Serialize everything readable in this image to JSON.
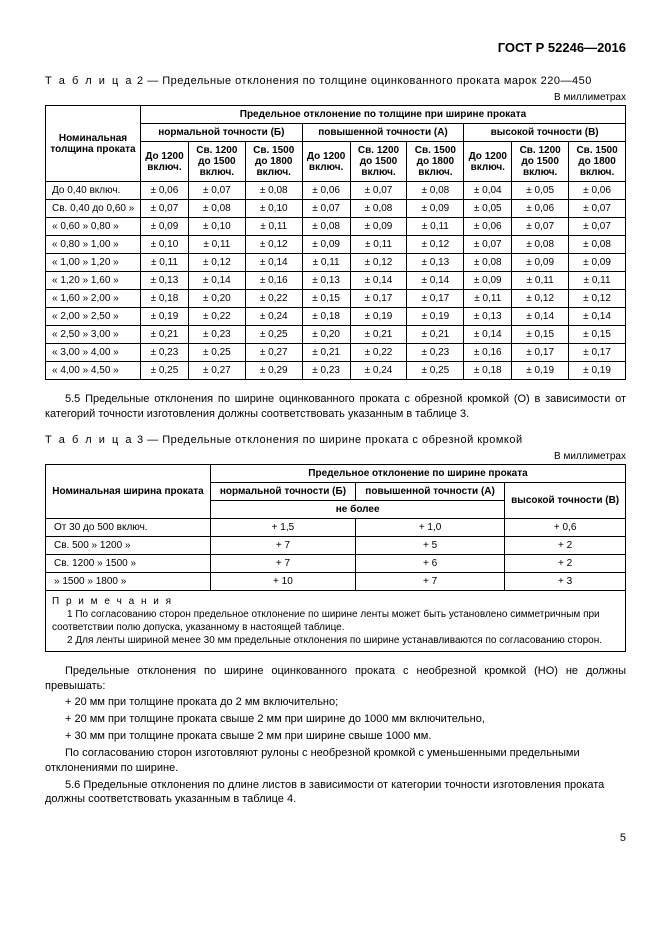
{
  "header": "ГОСТ Р 52246—2016",
  "table2": {
    "caption_prefix": "Т а б л и ц а",
    "caption_num": "2",
    "caption_text": "— Предельные отклонения по толщине оцинкованного проката марок 220—450",
    "unit": "В миллиметрах",
    "h_main": "Предельное отклонение по толщине при ширине проката",
    "h_rowhead": "Номинальная толщина проката",
    "h_groupB": "нормальной точности (Б)",
    "h_groupA": "повышенной точности (А)",
    "h_groupV": "высокой точности (В)",
    "sub1": "До 1200 включ.",
    "sub2": "Св. 1200 до 1500 включ.",
    "sub3": "Св. 1500 до 1800 включ.",
    "rows": [
      {
        "n": "До 0,40 включ.",
        "c": [
          "± 0,06",
          "± 0,07",
          "± 0,08",
          "± 0,06",
          "± 0,07",
          "± 0,08",
          "± 0,04",
          "± 0,05",
          "± 0,06"
        ]
      },
      {
        "n": "Св. 0,40 до 0,60   »",
        "c": [
          "± 0,07",
          "± 0,08",
          "± 0,10",
          "± 0,07",
          "± 0,08",
          "± 0,09",
          "± 0,05",
          "± 0,06",
          "± 0,07"
        ]
      },
      {
        "n": "«   0,60  »  0,80    »",
        "c": [
          "± 0,09",
          "± 0,10",
          "± 0,11",
          "± 0,08",
          "± 0,09",
          "± 0,11",
          "± 0,06",
          "± 0,07",
          "± 0,07"
        ]
      },
      {
        "n": "«   0,80  »  1,00    »",
        "c": [
          "± 0,10",
          "± 0,11",
          "± 0,12",
          "± 0,09",
          "± 0,11",
          "± 0,12",
          "± 0,07",
          "± 0,08",
          "± 0,08"
        ]
      },
      {
        "n": "«   1,00  »  1,20    »",
        "c": [
          "± 0,11",
          "± 0,12",
          "± 0,14",
          "± 0,11",
          "± 0,12",
          "± 0,13",
          "± 0,08",
          "± 0,09",
          "± 0,09"
        ]
      },
      {
        "n": "«   1,20  »  1,60    »",
        "c": [
          "± 0,13",
          "± 0,14",
          "± 0,16",
          "± 0,13",
          "± 0,14",
          "± 0,14",
          "± 0,09",
          "± 0,11",
          "± 0,11"
        ]
      },
      {
        "n": "«   1,60  »  2,00    »",
        "c": [
          "± 0,18",
          "± 0,20",
          "± 0,22",
          "± 0,15",
          "± 0,17",
          "± 0,17",
          "± 0,11",
          "± 0,12",
          "± 0,12"
        ]
      },
      {
        "n": "«   2,00  »  2,50    »",
        "c": [
          "± 0,19",
          "± 0,22",
          "± 0,24",
          "± 0,18",
          "± 0,19",
          "± 0,19",
          "± 0,13",
          "± 0,14",
          "± 0,14"
        ]
      },
      {
        "n": "«   2,50  »  3,00    »",
        "c": [
          "± 0,21",
          "± 0,23",
          "± 0,25",
          "± 0,20",
          "± 0,21",
          "± 0,21",
          "± 0,14",
          "± 0,15",
          "± 0,15"
        ]
      },
      {
        "n": "«   3,00  »  4,00    »",
        "c": [
          "± 0,23",
          "± 0,25",
          "± 0,27",
          "± 0,21",
          "± 0,22",
          "± 0,23",
          "± 0,16",
          "± 0,17",
          "± 0,17"
        ]
      },
      {
        "n": "«   4,00  »  4,50    »",
        "c": [
          "± 0,25",
          "± 0,27",
          "± 0,29",
          "± 0,23",
          "± 0,24",
          "± 0,25",
          "± 0,18",
          "± 0,19",
          "± 0,19"
        ]
      }
    ]
  },
  "para55": "5.5 Предельные отклонения по ширине оцинкованного проката с обрезной кромкой (О) в зависимости от категорий точности изготовления должны соответствовать указанным в таблице 3.",
  "table3": {
    "caption_prefix": "Т а б л и ц а",
    "caption_num": "3",
    "caption_text": "— Предельные отклонения по ширине проката с обрезной кромкой",
    "unit": "В миллиметрах",
    "h_rowhead": "Номинальная ширина проката",
    "h_main": "Предельное отклонение по ширине проката",
    "h_B": "нормальной точности (Б)",
    "h_A": "повышенной точности (А)",
    "h_V": "высокой  точности (В)",
    "h_max": "не более",
    "rows": [
      {
        "n": "От     30   до    500   включ.",
        "c": [
          "+ 1,5",
          "+ 1,0",
          "+ 0,6"
        ]
      },
      {
        "n": "Св.   500    »   1200      »",
        "c": [
          "+ 7",
          "+ 5",
          "+ 2"
        ]
      },
      {
        "n": "Св.  1200    »   1500      »",
        "c": [
          "+ 7",
          "+ 6",
          "+ 2"
        ]
      },
      {
        "n": "  »   1500    »   1800      »",
        "c": [
          "+ 10",
          "+ 7",
          "+ 3"
        ]
      }
    ],
    "notes_title": "П р и м е ч а н и я",
    "note1": "1 По согласованию сторон предельное отклонение по ширине ленты может быть установлено симметричным при соответствии полю допуска, указанному в настоящей таблице.",
    "note2": "2 Для ленты шириной менее 30 мм предельные отклонения по ширине устанавливаются по согласованию сторон."
  },
  "paraHO": "Предельные отклонения по ширине оцинкованного проката с необрезной кромкой (НО) не должны превышать:",
  "bullets": [
    "+ 20 мм при толщине проката до 2 мм включительно;",
    "+ 20 мм при толщине проката свыше 2 мм при ширине до 1000 мм включительно,",
    "+ 30 мм при толщине проката свыше 2 мм при ширине свыше 1000 мм."
  ],
  "paraAfter": "По согласованию сторон изготовляют рулоны с необрезной кромкой с уменьшенными предельными отклонениями по ширине.",
  "para56": "5.6 Предельные отклонения по длине листов в зависимости от категории точности изготовления проката должны соответствовать указанным в таблице 4.",
  "pageNum": "5"
}
